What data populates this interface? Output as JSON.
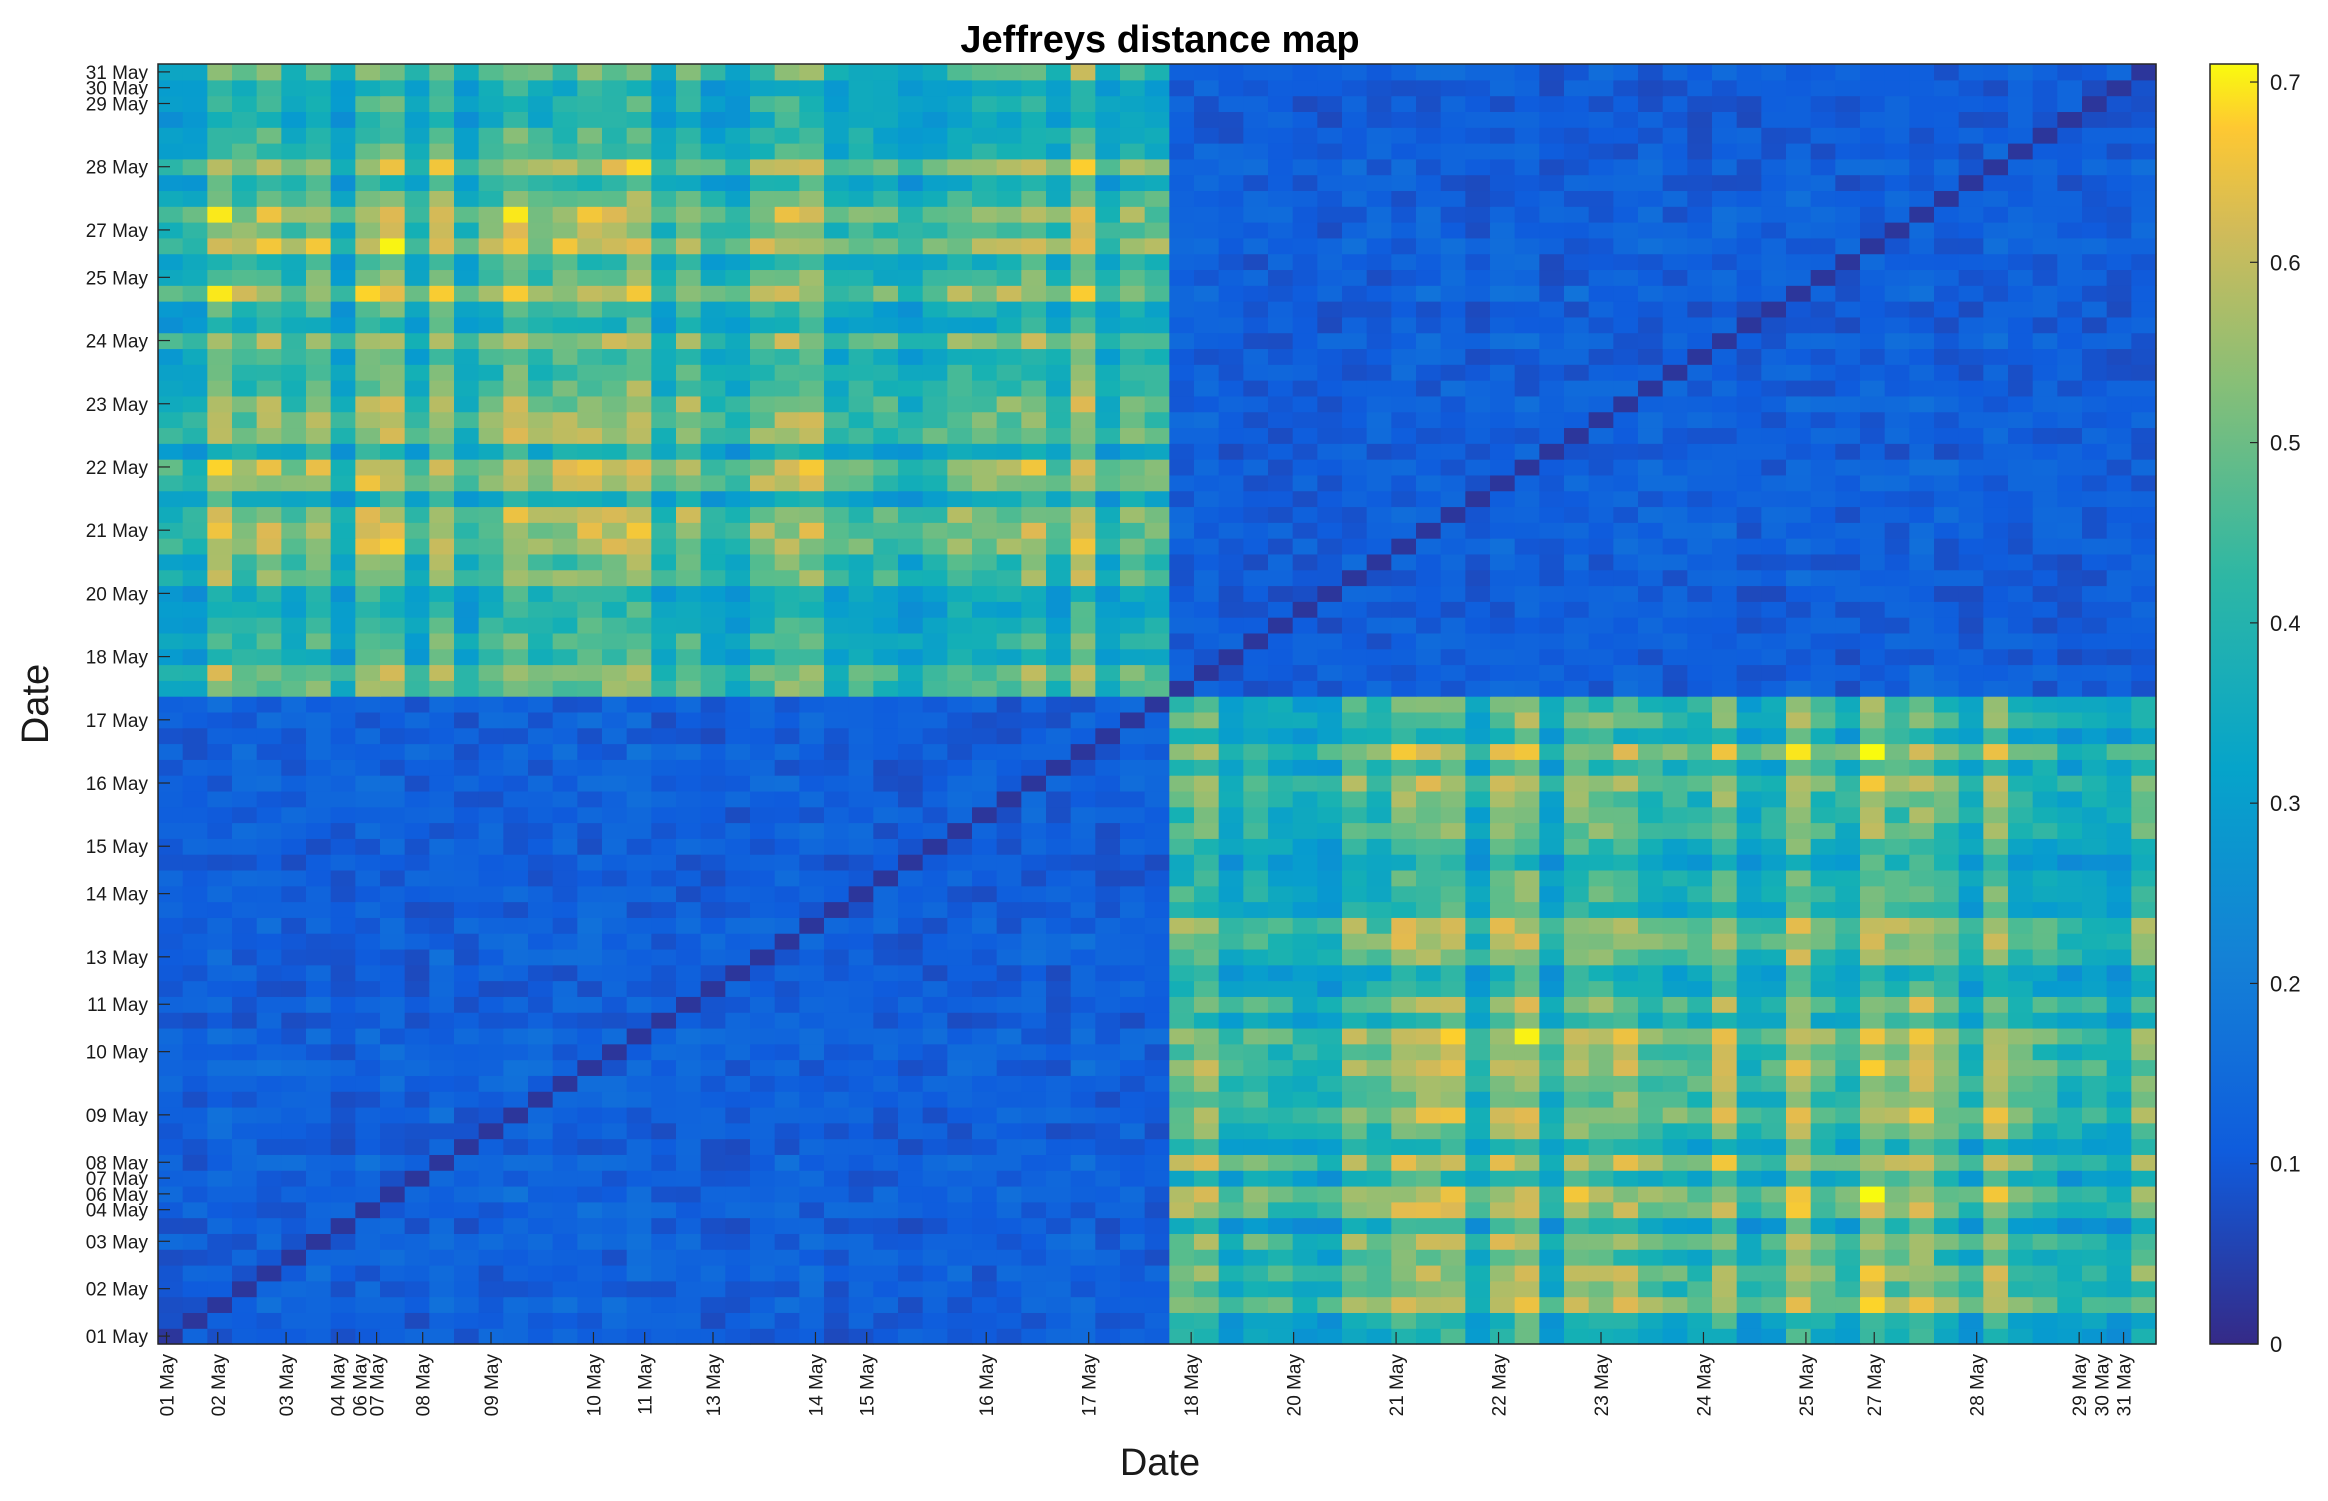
{
  "chart_data": {
    "type": "heatmap",
    "title": "Jeffreys distance map",
    "xlabel": "Date",
    "ylabel": "Date",
    "n_cells": 81,
    "x_ticks": [
      {
        "label": "01 May",
        "index": 0
      },
      {
        "label": "02 May",
        "index": 3
      },
      {
        "label": "03 May",
        "index": 7
      },
      {
        "label": "04 May",
        "index": 10
      },
      {
        "label": "06 May",
        "index": 11.3
      },
      {
        "label": "07 May",
        "index": 12.3
      },
      {
        "label": "08 May",
        "index": 15
      },
      {
        "label": "09 May",
        "index": 19
      },
      {
        "label": "10 May",
        "index": 25
      },
      {
        "label": "11 May",
        "index": 28
      },
      {
        "label": "13 May",
        "index": 32
      },
      {
        "label": "14 May",
        "index": 38
      },
      {
        "label": "15 May",
        "index": 41
      },
      {
        "label": "16 May",
        "index": 48
      },
      {
        "label": "17 May",
        "index": 54
      },
      {
        "label": "18 May",
        "index": 60
      },
      {
        "label": "20 May",
        "index": 66
      },
      {
        "label": "21 May",
        "index": 72
      },
      {
        "label": "22 May",
        "index": 78
      },
      {
        "label": "23 May",
        "index": 84
      },
      {
        "label": "24 May",
        "index": 90
      },
      {
        "label": "25 May",
        "index": 96
      },
      {
        "label": "27 May",
        "index": 100
      },
      {
        "label": "28 May",
        "index": 106
      },
      {
        "label": "29 May",
        "index": 112
      },
      {
        "label": "30 May",
        "index": 113.3
      },
      {
        "label": "31 May",
        "index": 114.6
      }
    ],
    "y_ticks": [
      {
        "label": "01 May",
        "index": 0
      },
      {
        "label": "02 May",
        "index": 3
      },
      {
        "label": "03 May",
        "index": 6
      },
      {
        "label": "04 May",
        "index": 8
      },
      {
        "label": "06 May",
        "index": 9
      },
      {
        "label": "07 May",
        "index": 10
      },
      {
        "label": "08 May",
        "index": 11
      },
      {
        "label": "09 May",
        "index": 14
      },
      {
        "label": "10 May",
        "index": 18
      },
      {
        "label": "11 May",
        "index": 21
      },
      {
        "label": "13 May",
        "index": 24
      },
      {
        "label": "14 May",
        "index": 28
      },
      {
        "label": "15 May",
        "index": 31
      },
      {
        "label": "16 May",
        "index": 35
      },
      {
        "label": "17 May",
        "index": 39
      },
      {
        "label": "18 May",
        "index": 43
      },
      {
        "label": "20 May",
        "index": 47
      },
      {
        "label": "21 May",
        "index": 51
      },
      {
        "label": "22 May",
        "index": 55
      },
      {
        "label": "23 May",
        "index": 59
      },
      {
        "label": "24 May",
        "index": 63
      },
      {
        "label": "25 May",
        "index": 67
      },
      {
        "label": "27 May",
        "index": 70
      },
      {
        "label": "28 May",
        "index": 74
      },
      {
        "label": "29 May",
        "index": 78
      },
      {
        "label": "30 May",
        "index": 79
      },
      {
        "label": "31 May",
        "index": 80
      }
    ],
    "colorbar": {
      "min": 0,
      "max": 0.71,
      "ticks": [
        0,
        0.1,
        0.2,
        0.3,
        0.4,
        0.5,
        0.6,
        0.7
      ],
      "tick_labels": [
        "0",
        "0.1",
        "0.2",
        "0.3",
        "0.4",
        "0.5",
        "0.6",
        "0.7"
      ],
      "colormap": "parula"
    },
    "blocks": {
      "boundary_index": 41,
      "within_block_value": 0.1,
      "between_block_value": 0.42,
      "diagonal_value": 0.0
    },
    "grid": false,
    "legend": "none"
  }
}
